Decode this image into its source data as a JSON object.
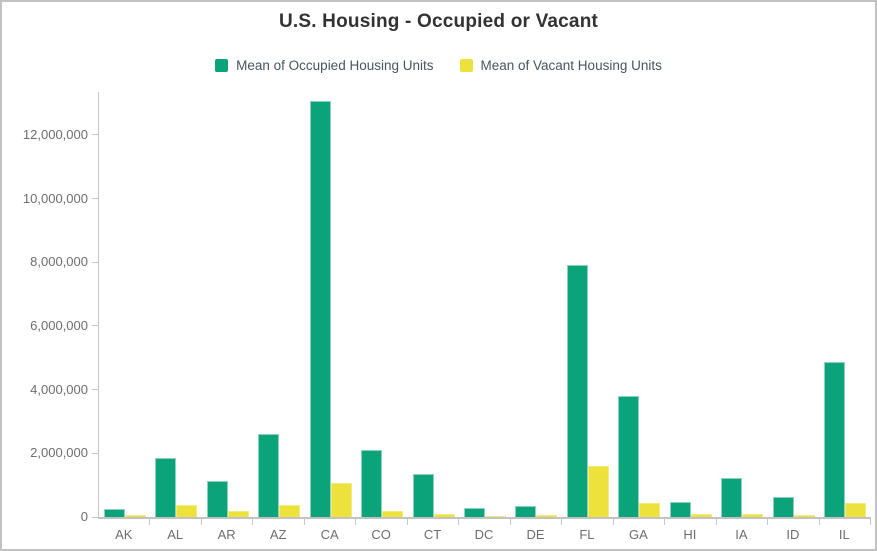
{
  "title": "U.S. Housing - Occupied or Vacant",
  "legend": {
    "items": [
      {
        "id": "occupied",
        "label": "Mean of Occupied Housing Units"
      },
      {
        "id": "vacant",
        "label": "Mean of Vacant Housing Units"
      }
    ]
  },
  "colors": {
    "title_text": "#323232",
    "legend_text": "#46565e",
    "axis_line": "#c6c6c6",
    "baseline": "#c2c2c2",
    "tick_label": "#6e6e6e",
    "canvas_border": "#c2c2c2",
    "background": "#ffffff"
  },
  "chart_data": {
    "type": "bar",
    "title": "U.S. Housing - Occupied or Vacant",
    "xlabel": "",
    "ylabel": "",
    "grid": false,
    "legend_position": "top",
    "categories": [
      "AK",
      "AL",
      "AR",
      "AZ",
      "CA",
      "CO",
      "CT",
      "DC",
      "DE",
      "FL",
      "GA",
      "HI",
      "IA",
      "ID",
      "IL"
    ],
    "series": [
      {
        "name": "Mean of Occupied Housing Units",
        "color": "#0ba47a",
        "stroke": "#8ed1bc",
        "values": [
          240000,
          1860000,
          1130000,
          2600000,
          13060000,
          2100000,
          1340000,
          280000,
          355000,
          7900000,
          3800000,
          470000,
          1240000,
          640000,
          4870000
        ]
      },
      {
        "name": "Mean of Vacant Housing Units",
        "color": "#ede23c",
        "stroke": "#f3eb7d",
        "values": [
          60000,
          370000,
          190000,
          370000,
          1080000,
          190000,
          110000,
          40000,
          75000,
          1600000,
          450000,
          80000,
          110000,
          65000,
          450000
        ]
      }
    ],
    "ylim": [
      0,
      13345000
    ],
    "yticks": [
      0,
      2000000,
      4000000,
      6000000,
      8000000,
      10000000,
      12000000
    ]
  }
}
